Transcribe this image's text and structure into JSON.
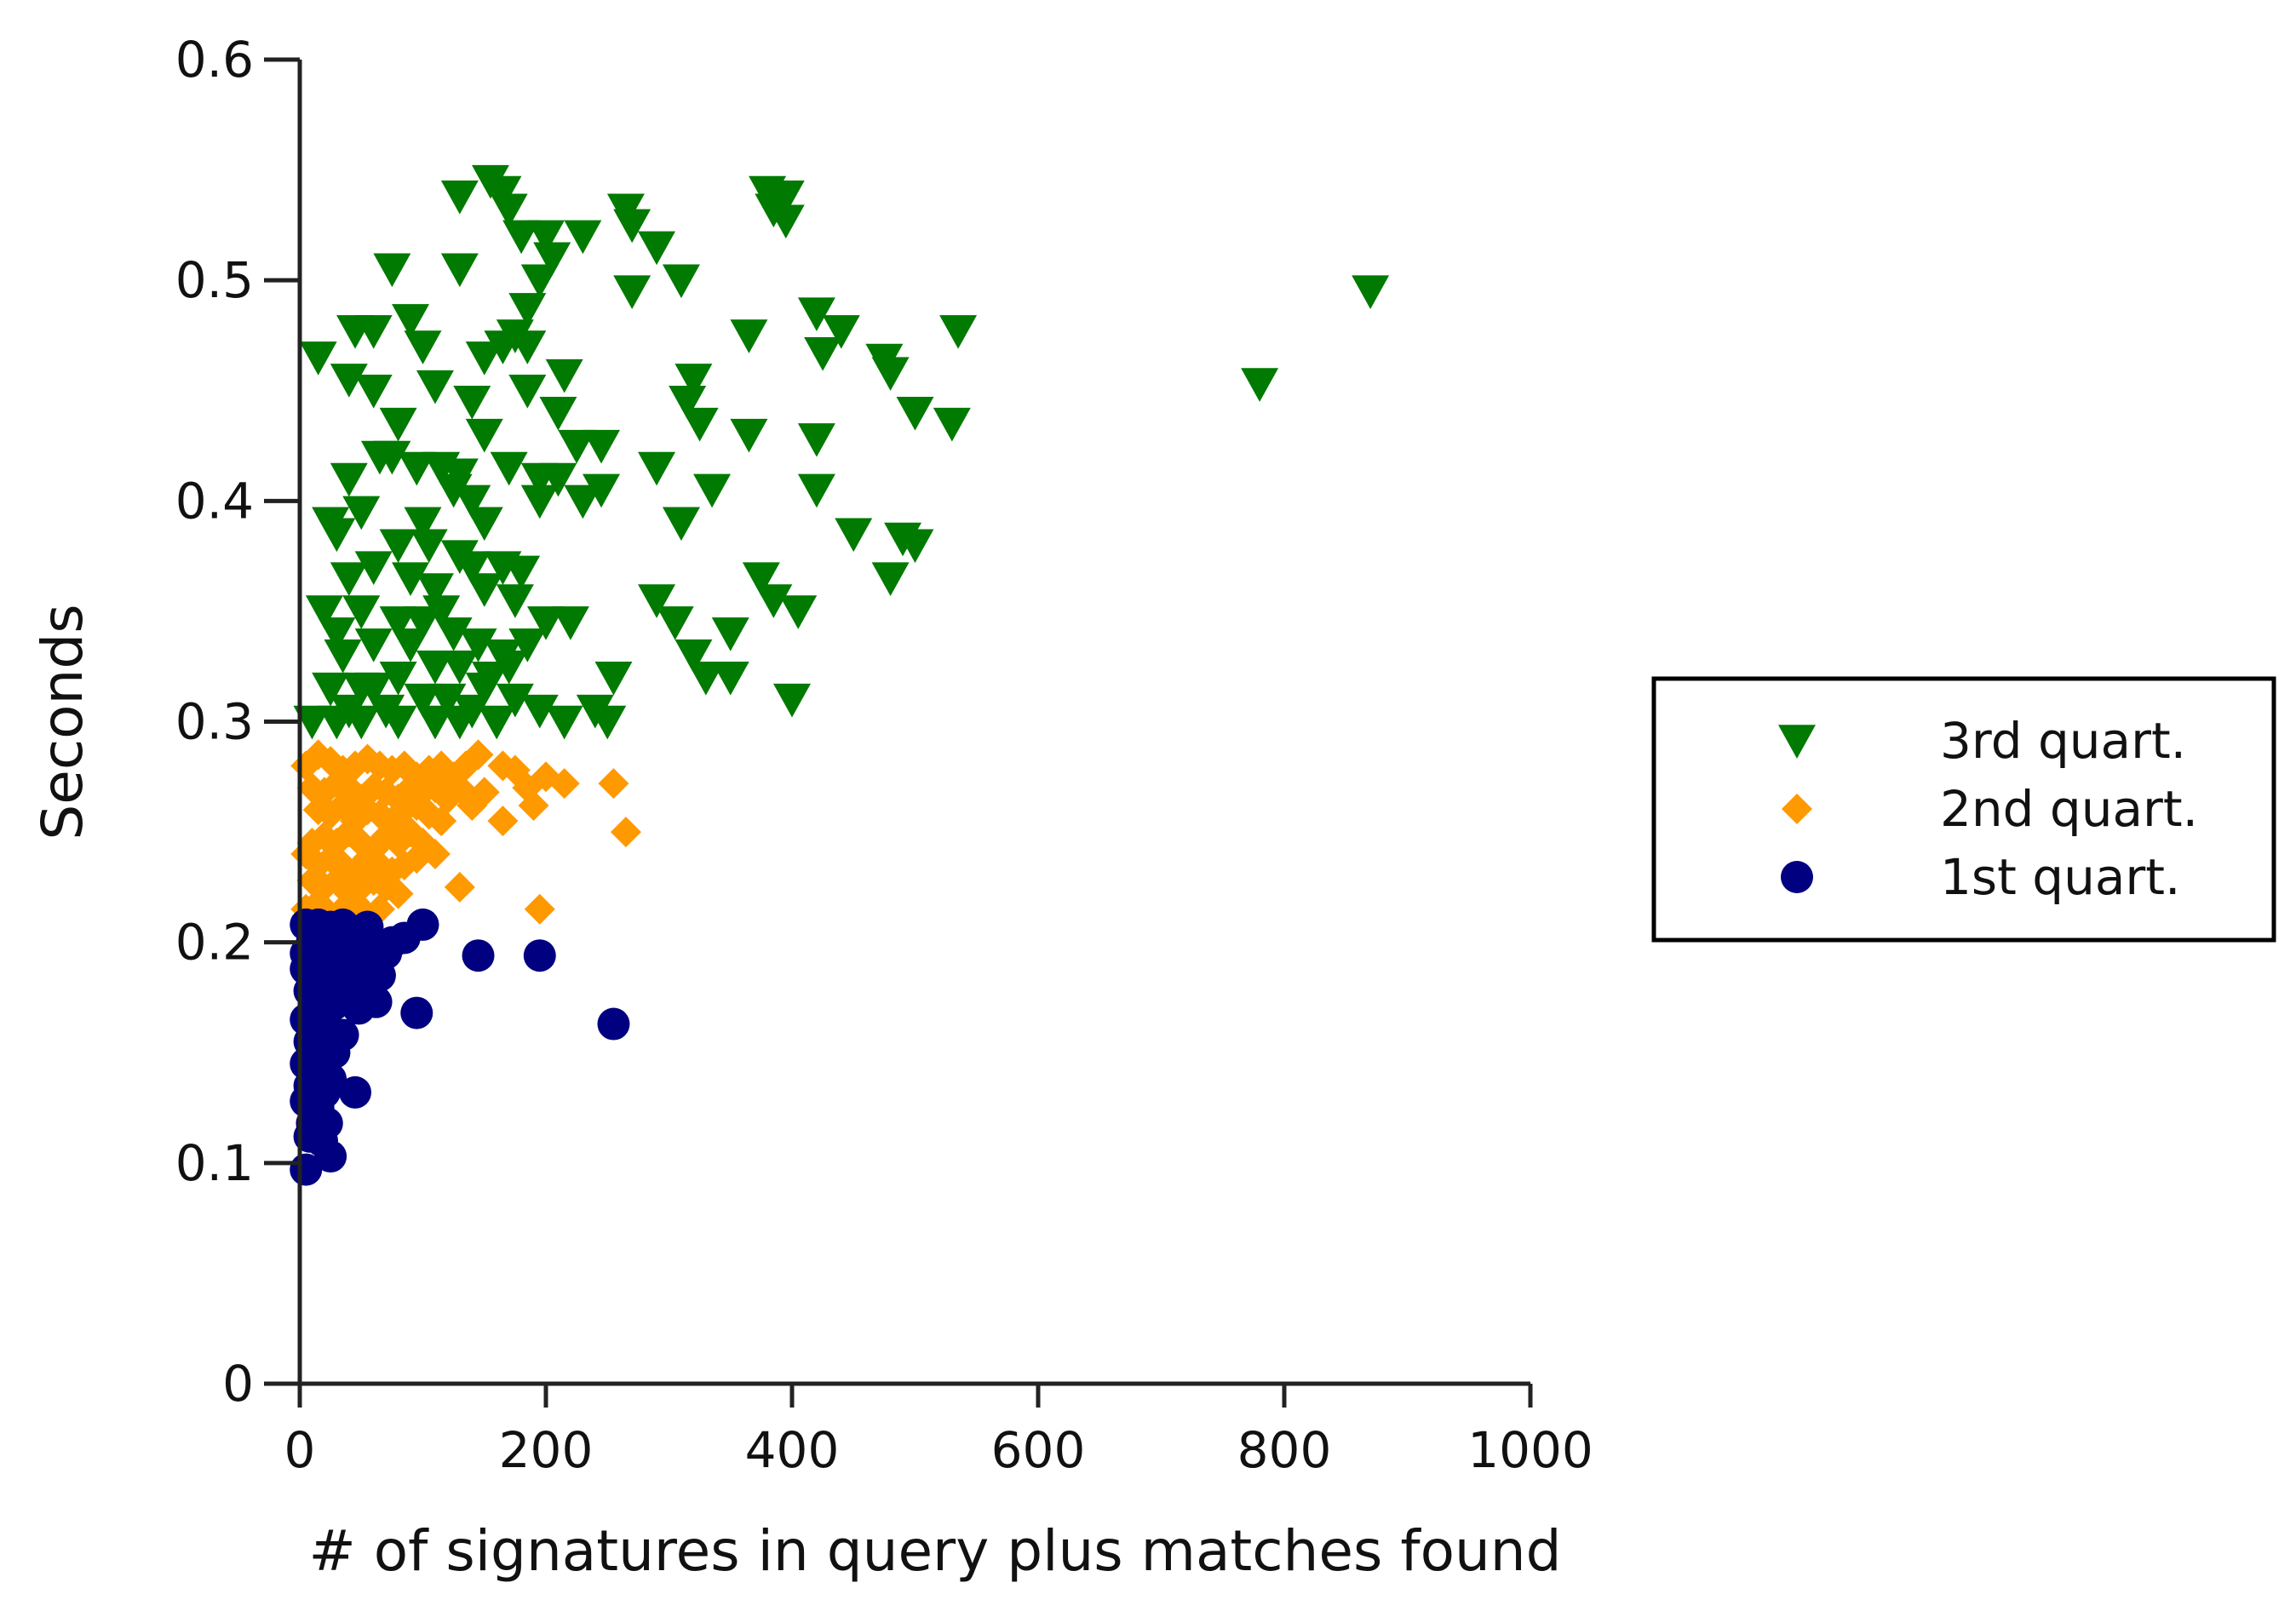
{
  "chart_data": {
    "type": "scatter",
    "title": "",
    "xlabel": "# of signatures in query plus matches found",
    "ylabel": "Seconds",
    "xlim": [
      0,
      1000
    ],
    "ylim": [
      0,
      0.6
    ],
    "xticks": [
      0,
      200,
      400,
      600,
      800,
      1000
    ],
    "xtick_labels": [
      "0",
      "200",
      "400",
      "600",
      "800",
      "1000"
    ],
    "yticks": [
      0,
      0.1,
      0.2,
      0.3,
      0.4,
      0.5,
      0.6
    ],
    "ytick_labels": [
      "0",
      "0.1",
      "0.2",
      "0.3",
      "0.4",
      "0.5",
      "0.6"
    ],
    "grid": false,
    "legend_position": "right",
    "series": [
      {
        "name": "3rd quart.",
        "marker": "triangle-down",
        "color": "#007a00",
        "points": [
          [
            155,
            0.545
          ],
          [
            165,
            0.54
          ],
          [
            130,
            0.538
          ],
          [
            170,
            0.532
          ],
          [
            380,
            0.54
          ],
          [
            395,
            0.538
          ],
          [
            385,
            0.532
          ],
          [
            395,
            0.527
          ],
          [
            265,
            0.532
          ],
          [
            270,
            0.525
          ],
          [
            180,
            0.52
          ],
          [
            200,
            0.52
          ],
          [
            230,
            0.52
          ],
          [
            290,
            0.515
          ],
          [
            205,
            0.51
          ],
          [
            195,
            0.5
          ],
          [
            75,
            0.505
          ],
          [
            130,
            0.505
          ],
          [
            310,
            0.5
          ],
          [
            270,
            0.495
          ],
          [
            870,
            0.495
          ],
          [
            185,
            0.487
          ],
          [
            90,
            0.482
          ],
          [
            420,
            0.485
          ],
          [
            45,
            0.477
          ],
          [
            60,
            0.477
          ],
          [
            440,
            0.477
          ],
          [
            535,
            0.477
          ],
          [
            365,
            0.475
          ],
          [
            165,
            0.47
          ],
          [
            175,
            0.475
          ],
          [
            185,
            0.47
          ],
          [
            100,
            0.47
          ],
          [
            150,
            0.465
          ],
          [
            15,
            0.465
          ],
          [
            425,
            0.467
          ],
          [
            475,
            0.464
          ],
          [
            480,
            0.458
          ],
          [
            40,
            0.455
          ],
          [
            60,
            0.45
          ],
          [
            110,
            0.452
          ],
          [
            215,
            0.457
          ],
          [
            320,
            0.455
          ],
          [
            780,
            0.453
          ],
          [
            185,
            0.45
          ],
          [
            315,
            0.445
          ],
          [
            140,
            0.445
          ],
          [
            210,
            0.44
          ],
          [
            80,
            0.435
          ],
          [
            500,
            0.44
          ],
          [
            530,
            0.435
          ],
          [
            325,
            0.435
          ],
          [
            150,
            0.43
          ],
          [
            365,
            0.43
          ],
          [
            420,
            0.428
          ],
          [
            225,
            0.425
          ],
          [
            245,
            0.425
          ],
          [
            65,
            0.42
          ],
          [
            75,
            0.42
          ],
          [
            95,
            0.415
          ],
          [
            115,
            0.415
          ],
          [
            130,
            0.412
          ],
          [
            40,
            0.41
          ],
          [
            170,
            0.415
          ],
          [
            195,
            0.41
          ],
          [
            210,
            0.41
          ],
          [
            290,
            0.415
          ],
          [
            245,
            0.405
          ],
          [
            125,
            0.405
          ],
          [
            140,
            0.4
          ],
          [
            195,
            0.4
          ],
          [
            335,
            0.405
          ],
          [
            420,
            0.405
          ],
          [
            230,
            0.4
          ],
          [
            50,
            0.395
          ],
          [
            25,
            0.39
          ],
          [
            100,
            0.39
          ],
          [
            150,
            0.39
          ],
          [
            310,
            0.39
          ],
          [
            30,
            0.385
          ],
          [
            80,
            0.38
          ],
          [
            105,
            0.38
          ],
          [
            450,
            0.385
          ],
          [
            490,
            0.383
          ],
          [
            500,
            0.38
          ],
          [
            130,
            0.375
          ],
          [
            140,
            0.37
          ],
          [
            165,
            0.37
          ],
          [
            180,
            0.368
          ],
          [
            60,
            0.37
          ],
          [
            40,
            0.365
          ],
          [
            90,
            0.365
          ],
          [
            480,
            0.365
          ],
          [
            375,
            0.365
          ],
          [
            110,
            0.36
          ],
          [
            150,
            0.36
          ],
          [
            175,
            0.355
          ],
          [
            290,
            0.355
          ],
          [
            385,
            0.355
          ],
          [
            20,
            0.35
          ],
          [
            50,
            0.35
          ],
          [
            115,
            0.35
          ],
          [
            100,
            0.345
          ],
          [
            80,
            0.345
          ],
          [
            200,
            0.345
          ],
          [
            220,
            0.345
          ],
          [
            305,
            0.345
          ],
          [
            405,
            0.35
          ],
          [
            30,
            0.34
          ],
          [
            60,
            0.335
          ],
          [
            90,
            0.335
          ],
          [
            125,
            0.34
          ],
          [
            145,
            0.335
          ],
          [
            165,
            0.33
          ],
          [
            185,
            0.335
          ],
          [
            350,
            0.34
          ],
          [
            320,
            0.33
          ],
          [
            35,
            0.33
          ],
          [
            110,
            0.325
          ],
          [
            130,
            0.325
          ],
          [
            155,
            0.32
          ],
          [
            170,
            0.325
          ],
          [
            80,
            0.32
          ],
          [
            330,
            0.32
          ],
          [
            25,
            0.315
          ],
          [
            50,
            0.315
          ],
          [
            60,
            0.315
          ],
          [
            100,
            0.31
          ],
          [
            120,
            0.31
          ],
          [
            150,
            0.315
          ],
          [
            175,
            0.31
          ],
          [
            350,
            0.32
          ],
          [
            255,
            0.32
          ],
          [
            40,
            0.305
          ],
          [
            70,
            0.305
          ],
          [
            140,
            0.305
          ],
          [
            195,
            0.305
          ],
          [
            240,
            0.305
          ],
          [
            400,
            0.31
          ],
          [
            10,
            0.3
          ],
          [
            30,
            0.3
          ],
          [
            50,
            0.3
          ],
          [
            80,
            0.3
          ],
          [
            110,
            0.3
          ],
          [
            130,
            0.3
          ],
          [
            160,
            0.3
          ],
          [
            215,
            0.3
          ],
          [
            250,
            0.3
          ]
        ]
      },
      {
        "name": "2nd quart.",
        "marker": "diamond",
        "color": "#ff9900",
        "points": [
          [
            5,
            0.28
          ],
          [
            15,
            0.285
          ],
          [
            25,
            0.282
          ],
          [
            35,
            0.278
          ],
          [
            45,
            0.28
          ],
          [
            55,
            0.283
          ],
          [
            65,
            0.28
          ],
          [
            75,
            0.278
          ],
          [
            85,
            0.28
          ],
          [
            95,
            0.275
          ],
          [
            105,
            0.278
          ],
          [
            115,
            0.28
          ],
          [
            125,
            0.275
          ],
          [
            135,
            0.28
          ],
          [
            145,
            0.285
          ],
          [
            165,
            0.28
          ],
          [
            175,
            0.278
          ],
          [
            10,
            0.27
          ],
          [
            20,
            0.268
          ],
          [
            30,
            0.272
          ],
          [
            40,
            0.27
          ],
          [
            50,
            0.265
          ],
          [
            60,
            0.27
          ],
          [
            70,
            0.268
          ],
          [
            80,
            0.265
          ],
          [
            90,
            0.27
          ],
          [
            100,
            0.268
          ],
          [
            110,
            0.27
          ],
          [
            120,
            0.265
          ],
          [
            130,
            0.27
          ],
          [
            150,
            0.268
          ],
          [
            185,
            0.27
          ],
          [
            200,
            0.275
          ],
          [
            215,
            0.272
          ],
          [
            255,
            0.272
          ],
          [
            15,
            0.26
          ],
          [
            25,
            0.258
          ],
          [
            35,
            0.262
          ],
          [
            45,
            0.255
          ],
          [
            55,
            0.26
          ],
          [
            65,
            0.258
          ],
          [
            75,
            0.255
          ],
          [
            85,
            0.26
          ],
          [
            95,
            0.262
          ],
          [
            105,
            0.258
          ],
          [
            115,
            0.255
          ],
          [
            140,
            0.262
          ],
          [
            165,
            0.255
          ],
          [
            190,
            0.262
          ],
          [
            265,
            0.25
          ],
          [
            10,
            0.245
          ],
          [
            20,
            0.248
          ],
          [
            30,
            0.245
          ],
          [
            40,
            0.25
          ],
          [
            50,
            0.245
          ],
          [
            60,
            0.242
          ],
          [
            70,
            0.248
          ],
          [
            80,
            0.245
          ],
          [
            90,
            0.25
          ],
          [
            100,
            0.245
          ],
          [
            5,
            0.24
          ],
          [
            15,
            0.235
          ],
          [
            25,
            0.238
          ],
          [
            35,
            0.235
          ],
          [
            45,
            0.232
          ],
          [
            55,
            0.238
          ],
          [
            65,
            0.235
          ],
          [
            75,
            0.232
          ],
          [
            85,
            0.235
          ],
          [
            95,
            0.238
          ],
          [
            110,
            0.24
          ],
          [
            10,
            0.228
          ],
          [
            20,
            0.225
          ],
          [
            30,
            0.228
          ],
          [
            40,
            0.222
          ],
          [
            50,
            0.225
          ],
          [
            60,
            0.228
          ],
          [
            70,
            0.225
          ],
          [
            80,
            0.222
          ],
          [
            130,
            0.225
          ],
          [
            5,
            0.215
          ],
          [
            15,
            0.218
          ],
          [
            25,
            0.212
          ],
          [
            35,
            0.215
          ],
          [
            45,
            0.218
          ],
          [
            55,
            0.212
          ],
          [
            65,
            0.215
          ],
          [
            195,
            0.215
          ]
        ]
      },
      {
        "name": "1st quart.",
        "marker": "circle",
        "color": "#000080",
        "points": [
          [
            5,
            0.208
          ],
          [
            15,
            0.208
          ],
          [
            25,
            0.207
          ],
          [
            35,
            0.208
          ],
          [
            45,
            0.205
          ],
          [
            55,
            0.207
          ],
          [
            100,
            0.208
          ],
          [
            10,
            0.2
          ],
          [
            20,
            0.202
          ],
          [
            30,
            0.2
          ],
          [
            40,
            0.198
          ],
          [
            50,
            0.2
          ],
          [
            60,
            0.198
          ],
          [
            75,
            0.2
          ],
          [
            85,
            0.202
          ],
          [
            5,
            0.195
          ],
          [
            15,
            0.192
          ],
          [
            25,
            0.195
          ],
          [
            35,
            0.19
          ],
          [
            45,
            0.192
          ],
          [
            55,
            0.19
          ],
          [
            70,
            0.195
          ],
          [
            145,
            0.194
          ],
          [
            195,
            0.194
          ],
          [
            5,
            0.188
          ],
          [
            12,
            0.185
          ],
          [
            20,
            0.182
          ],
          [
            30,
            0.185
          ],
          [
            40,
            0.18
          ],
          [
            50,
            0.182
          ],
          [
            65,
            0.185
          ],
          [
            8,
            0.178
          ],
          [
            18,
            0.175
          ],
          [
            28,
            0.172
          ],
          [
            38,
            0.175
          ],
          [
            48,
            0.17
          ],
          [
            62,
            0.173
          ],
          [
            95,
            0.168
          ],
          [
            5,
            0.165
          ],
          [
            15,
            0.162
          ],
          [
            25,
            0.16
          ],
          [
            35,
            0.158
          ],
          [
            255,
            0.163
          ],
          [
            8,
            0.155
          ],
          [
            18,
            0.152
          ],
          [
            28,
            0.15
          ],
          [
            5,
            0.145
          ],
          [
            15,
            0.142
          ],
          [
            25,
            0.138
          ],
          [
            8,
            0.135
          ],
          [
            20,
            0.132
          ],
          [
            45,
            0.132
          ],
          [
            5,
            0.128
          ],
          [
            15,
            0.125
          ],
          [
            10,
            0.118
          ],
          [
            22,
            0.118
          ],
          [
            8,
            0.112
          ],
          [
            18,
            0.11
          ],
          [
            25,
            0.103
          ],
          [
            5,
            0.097
          ]
        ]
      }
    ]
  }
}
